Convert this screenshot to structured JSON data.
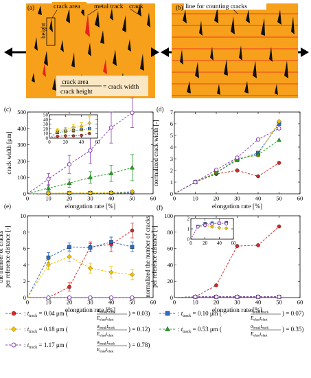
{
  "illustrations": {
    "a": {
      "panel_label": "(a)",
      "labels": {
        "crack_area": "crack area",
        "metal_track": "metal track",
        "crack": "crack",
        "height": "height"
      },
      "formula": {
        "numerator": "crack area",
        "denominator": "crack height",
        "result": "= crack width"
      }
    },
    "b": {
      "panel_label": "(b)",
      "label": "line for counting cracks"
    },
    "colors": {
      "track": "#f7a01c",
      "crack": "#111111",
      "crack_area": "#e8221c",
      "count_line": "#e8221c"
    }
  },
  "legend": [
    {
      "marker": "circle-filled",
      "color": "#d42a2a",
      "prefix": ": ",
      "t": "t",
      "tsub": "track",
      "eq": " = 0.04 μm (",
      "ratio": "0.03"
    },
    {
      "marker": "square-filled",
      "color": "#2a6fc4",
      "prefix": ": ",
      "t": "t",
      "tsub": "track",
      "eq": " = 0.10 μm (",
      "ratio": "0.07"
    },
    {
      "marker": "diamond-filled",
      "color": "#f2c200",
      "prefix": ": ",
      "t": "t",
      "tsub": "track",
      "eq": " = 0.18 μm (",
      "ratio": "0.12"
    },
    {
      "marker": "triangle-filled",
      "color": "#2aa02a",
      "prefix": ": ",
      "t": "t",
      "tsub": "track",
      "eq": " = 0.53 μm (",
      "ratio": "0.35"
    },
    {
      "marker": "circle-open",
      "color": "#8a3fb8",
      "prefix": ": ",
      "t": "t",
      "tsub": "track",
      "eq": " = 1.17 μm (",
      "ratio": "0.78"
    }
  ],
  "legend_fraction": {
    "num": "σ",
    "num_sub": "break",
    "num_t": "t",
    "num_t_sub": "track",
    "den": "E",
    "den_sub": "elast",
    "den_t": "t",
    "den_t_sub": "elast",
    "eq": ") = "
  },
  "chart_data": [
    {
      "panel": "(c)",
      "type": "line",
      "xlabel": "elongation rate [%]",
      "ylabel": "crack width [μm]",
      "xlim": [
        0,
        60
      ],
      "ylim": [
        0,
        500
      ],
      "xticks": [
        0,
        10,
        20,
        30,
        40,
        50,
        60
      ],
      "yticks": [
        0,
        100,
        200,
        300,
        400,
        500
      ],
      "x": [
        0,
        10,
        20,
        30,
        40,
        50
      ],
      "series": [
        {
          "color": "#d42a2a",
          "marker": "circle-filled",
          "values": [
            0,
            2,
            2,
            3,
            3,
            5
          ]
        },
        {
          "color": "#2a6fc4",
          "marker": "square-filled",
          "values": [
            0,
            3,
            4,
            5,
            5,
            8
          ]
        },
        {
          "color": "#f2c200",
          "marker": "diamond-filled",
          "values": [
            0,
            4,
            5,
            6,
            7,
            14
          ]
        },
        {
          "color": "#2aa02a",
          "marker": "triangle-filled",
          "values": [
            0,
            35,
            65,
            100,
            125,
            160
          ],
          "err": [
            0,
            15,
            25,
            35,
            50,
            80
          ]
        },
        {
          "color": "#8a3fb8",
          "marker": "circle-open",
          "values": [
            0,
            90,
            180,
            265,
            405,
            495
          ],
          "err": [
            0,
            35,
            55,
            80,
            95,
            90
          ]
        }
      ],
      "inset": {
        "xlim": [
          0,
          60
        ],
        "ylim": [
          0,
          50
        ],
        "xticks": [
          0,
          20,
          40,
          60
        ],
        "yticks": [
          0,
          10,
          20,
          30,
          40,
          50
        ],
        "x": [
          0,
          10,
          20,
          30,
          40,
          50
        ],
        "series": [
          {
            "color": "#d42a2a",
            "marker": "circle-filled",
            "values": [
              0,
              4,
              5,
              5,
              6,
              10
            ]
          },
          {
            "color": "#2a6fc4",
            "marker": "square-filled",
            "values": [
              0,
              12,
              14,
              16,
              18,
              20
            ]
          },
          {
            "color": "#f2c200",
            "marker": "diamond-filled",
            "values": [
              0,
              16,
              18,
              23,
              25,
              32
            ],
            "err": [
              0,
              4,
              5,
              6,
              8,
              15
            ]
          }
        ]
      }
    },
    {
      "panel": "(d)",
      "type": "line",
      "xlabel": "elongation rate [%]",
      "ylabel": "normalized crack width [-]",
      "xlim": [
        0,
        60
      ],
      "ylim": [
        0,
        7
      ],
      "xticks": [
        0,
        10,
        20,
        30,
        40,
        50,
        60
      ],
      "yticks": [
        0,
        1,
        2,
        3,
        4,
        5,
        6,
        7
      ],
      "x": [
        0,
        10,
        20,
        30,
        40,
        50
      ],
      "series": [
        {
          "color": "#d42a2a",
          "marker": "circle-filled",
          "values": [
            0,
            1,
            1.7,
            2,
            1.5,
            2.65
          ]
        },
        {
          "color": "#2a6fc4",
          "marker": "square-filled",
          "values": [
            0,
            1,
            1.8,
            2.9,
            3.5,
            6
          ]
        },
        {
          "color": "#f2c200",
          "marker": "diamond-filled",
          "values": [
            0,
            1,
            1.8,
            3.05,
            3.3,
            6.2
          ]
        },
        {
          "color": "#2aa02a",
          "marker": "triangle-filled",
          "values": [
            0,
            1,
            1.8,
            2.95,
            3.35,
            4.6
          ]
        },
        {
          "color": "#8a3fb8",
          "marker": "circle-open",
          "values": [
            0,
            1,
            2.05,
            3.1,
            4.65,
            5.6
          ]
        }
      ]
    },
    {
      "panel": "(e)",
      "type": "line",
      "xlabel": "elongation rate [%]",
      "ylabel": [
        "the number of cracks",
        "per reference distance [-]"
      ],
      "xlim": [
        0,
        60
      ],
      "ylim": [
        0,
        10
      ],
      "xticks": [
        0,
        10,
        20,
        30,
        40,
        50,
        60
      ],
      "yticks": [
        0,
        2,
        4,
        6,
        8,
        10
      ],
      "x": [
        0,
        10,
        20,
        30,
        40,
        50
      ],
      "series": [
        {
          "color": "#d42a2a",
          "marker": "circle-filled",
          "values": [
            0,
            0,
            1.3,
            6.2,
            6.5,
            8.2
          ],
          "err": [
            0,
            0,
            0.5,
            0.6,
            0.9,
            0.9
          ]
        },
        {
          "color": "#2a6fc4",
          "marker": "square-filled",
          "values": [
            0,
            4.9,
            6.2,
            6.1,
            6.8,
            6.2
          ],
          "err": [
            0,
            0.6,
            0.5,
            0.5,
            0.6,
            0.6
          ]
        },
        {
          "color": "#f2c200",
          "marker": "diamond-filled",
          "values": [
            0,
            4,
            5,
            3.6,
            3.1,
            2.8
          ],
          "err": [
            0,
            0.6,
            0.6,
            0.6,
            0.7,
            0.6
          ]
        },
        {
          "color": "#2aa02a",
          "marker": "triangle-filled",
          "values": [
            0,
            0,
            0,
            0,
            0,
            0
          ]
        },
        {
          "color": "#8a3fb8",
          "marker": "circle-open",
          "values": [
            0,
            0,
            0,
            0,
            0,
            0
          ]
        }
      ]
    },
    {
      "panel": "(f)",
      "type": "line",
      "xlabel": "elongation rate [%]",
      "ylabel": [
        "normalized the number of cracks",
        "per reference distance [-]"
      ],
      "xlim": [
        0,
        60
      ],
      "ylim": [
        0,
        100
      ],
      "xticks": [
        0,
        10,
        20,
        30,
        40,
        50,
        60
      ],
      "yticks": [
        0,
        20,
        40,
        60,
        80,
        100
      ],
      "x": [
        0,
        10,
        20,
        30,
        40,
        50
      ],
      "series": [
        {
          "color": "#d42a2a",
          "marker": "circle-filled",
          "values": [
            0,
            1,
            15,
            63,
            64,
            87
          ]
        },
        {
          "color": "#2a6fc4",
          "marker": "square-filled",
          "values": [
            0,
            1,
            1,
            1,
            1,
            1
          ]
        },
        {
          "color": "#f2c200",
          "marker": "diamond-filled",
          "values": [
            0,
            1,
            1,
            1,
            1,
            1
          ]
        },
        {
          "color": "#2aa02a",
          "marker": "triangle-filled",
          "values": [
            0,
            1,
            1,
            1,
            1,
            1
          ]
        },
        {
          "color": "#8a3fb8",
          "marker": "circle-open",
          "values": [
            0,
            1,
            1,
            1,
            1,
            1
          ]
        }
      ],
      "inset": {
        "xlim": [
          0,
          60
        ],
        "ylim": [
          0,
          2
        ],
        "xticks": [
          0,
          20,
          40,
          60
        ],
        "yticks": [
          0,
          1,
          2
        ],
        "x": [
          0,
          10,
          20,
          30,
          40,
          50
        ],
        "series": [
          {
            "color": "#2a6fc4",
            "marker": "square-filled",
            "values": [
              0,
              1.25,
              1.5,
              1.55,
              1.55,
              1.6
            ]
          },
          {
            "color": "#f2c200",
            "marker": "diamond-filled",
            "values": [
              0,
              1.2,
              1.3,
              1.2,
              1.1,
              1.05
            ]
          },
          {
            "color": "#8a3fb8",
            "marker": "circle-open",
            "values": [
              0,
              1.2,
              1.35,
              1.45,
              1.55,
              1.5
            ]
          }
        ]
      }
    }
  ]
}
